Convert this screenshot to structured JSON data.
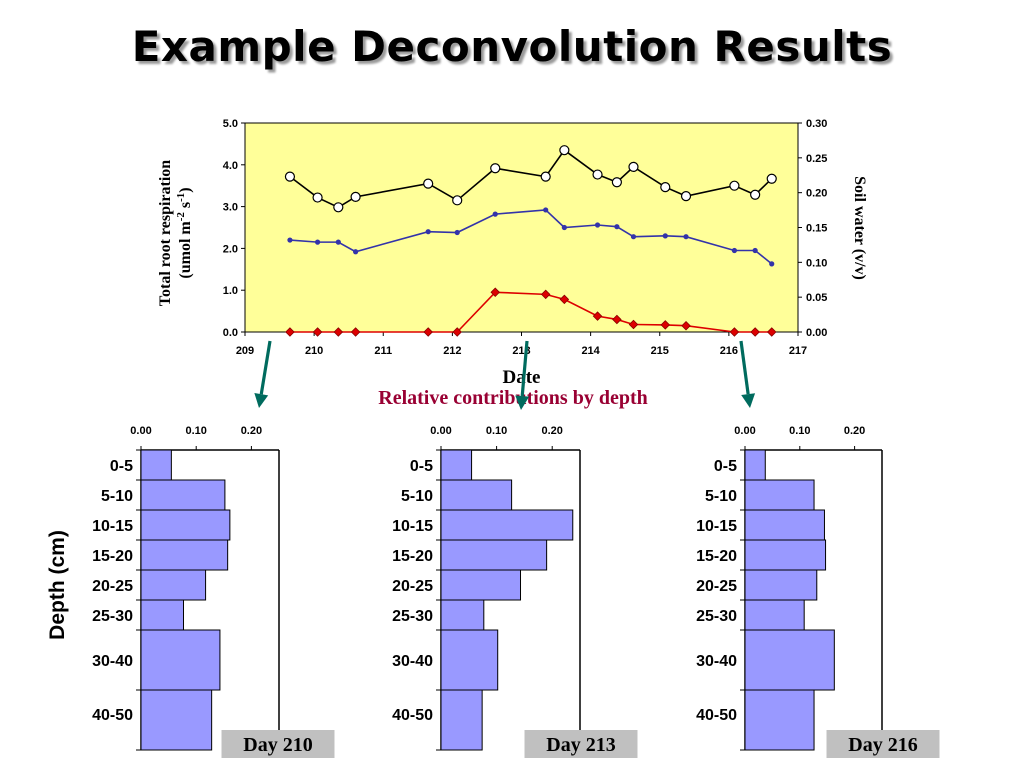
{
  "slide": {
    "title": "Example Deconvolution Results",
    "subtitle": "Relative contributions by depth",
    "colors": {
      "title_shadow": "#9a9a9a",
      "subtitle": "#990033",
      "arrow": "#006b5e"
    }
  },
  "chart_data": [
    {
      "type": "line",
      "xlabel": "Date",
      "ylabel": "Total root respiration (umol m-2 s-1)",
      "ylabel_line1": "Total root respiration",
      "ylabel_line2_prefix": "(umol m",
      "ylabel_sup1": "-2",
      "ylabel_mid": " s",
      "ylabel_sup2": "-1",
      "ylabel_end": ")",
      "y2label": "Soil water (v/v)",
      "xlim": [
        209,
        217
      ],
      "ylim": [
        0,
        5
      ],
      "y2lim": [
        0,
        0.3
      ],
      "xticks": [
        "209",
        "210",
        "211",
        "212",
        "213",
        "214",
        "215",
        "216",
        "217"
      ],
      "yticks": [
        "0.0",
        "1.0",
        "2.0",
        "3.0",
        "4.0",
        "5.0"
      ],
      "y2ticks": [
        "0.00",
        "0.05",
        "0.10",
        "0.15",
        "0.20",
        "0.25",
        "0.30"
      ],
      "plot_background": "#ffff99",
      "series": [
        {
          "axis": "y2",
          "color": "#000000",
          "marker": "circle-open",
          "x": [
            209.65,
            210.05,
            210.35,
            210.6,
            211.65,
            212.07,
            212.62,
            213.35,
            213.62,
            214.1,
            214.38,
            214.62,
            215.08,
            215.38,
            216.08,
            216.38,
            216.62
          ],
          "values": [
            0.223,
            0.193,
            0.179,
            0.194,
            0.213,
            0.189,
            0.235,
            0.223,
            0.261,
            0.226,
            0.215,
            0.237,
            0.208,
            0.195,
            0.21,
            0.197,
            0.22
          ]
        },
        {
          "axis": "y",
          "color": "#3333aa",
          "marker": "dot",
          "x": [
            209.65,
            210.05,
            210.35,
            210.6,
            211.65,
            212.07,
            212.62,
            213.35,
            213.62,
            214.1,
            214.38,
            214.62,
            215.08,
            215.38,
            216.08,
            216.38,
            216.62
          ],
          "values": [
            2.2,
            2.15,
            2.15,
            1.92,
            2.4,
            2.38,
            2.82,
            2.92,
            2.5,
            2.56,
            2.52,
            2.28,
            2.3,
            2.28,
            1.95,
            1.95,
            1.63
          ]
        },
        {
          "axis": "y",
          "color": "#dd0000",
          "marker": "diamond",
          "x": [
            209.65,
            210.05,
            210.35,
            210.6,
            211.65,
            212.07,
            212.62,
            213.35,
            213.62,
            214.1,
            214.38,
            214.62,
            215.08,
            215.38,
            216.08,
            216.38,
            216.62
          ],
          "values": [
            0,
            0,
            0,
            0,
            0,
            0,
            0.95,
            0.9,
            0.78,
            0.38,
            0.3,
            0.18,
            0.17,
            0.15,
            0,
            0,
            0
          ]
        }
      ]
    },
    {
      "type": "bar",
      "orientation": "horizontal",
      "label": "Day 210",
      "ylabel": "Depth (cm)",
      "xlim": [
        0,
        0.25
      ],
      "xticks": [
        "0.00",
        "0.10",
        "0.20"
      ],
      "categories": [
        "0-5",
        "5-10",
        "10-15",
        "15-20",
        "20-25",
        "25-30",
        "30-40",
        "40-50"
      ],
      "values": [
        0.055,
        0.152,
        0.161,
        0.157,
        0.117,
        0.077,
        0.143,
        0.128
      ],
      "bar_color": "#9999ff"
    },
    {
      "type": "bar",
      "orientation": "horizontal",
      "label": "Day 213",
      "xlim": [
        0,
        0.25
      ],
      "xticks": [
        "0.00",
        "0.10",
        "0.20"
      ],
      "categories": [
        "0-5",
        "5-10",
        "10-15",
        "15-20",
        "20-25",
        "25-30",
        "30-40",
        "40-50"
      ],
      "values": [
        0.055,
        0.127,
        0.237,
        0.19,
        0.143,
        0.077,
        0.102,
        0.074
      ],
      "bar_color": "#9999ff"
    },
    {
      "type": "bar",
      "orientation": "horizontal",
      "label": "Day 216",
      "xlim": [
        0,
        0.25
      ],
      "xticks": [
        "0.00",
        "0.10",
        "0.20"
      ],
      "categories": [
        "0-5",
        "5-10",
        "10-15",
        "15-20",
        "20-25",
        "25-30",
        "30-40",
        "40-50"
      ],
      "values": [
        0.037,
        0.126,
        0.145,
        0.147,
        0.131,
        0.108,
        0.163,
        0.126
      ],
      "bar_color": "#9999ff"
    }
  ]
}
